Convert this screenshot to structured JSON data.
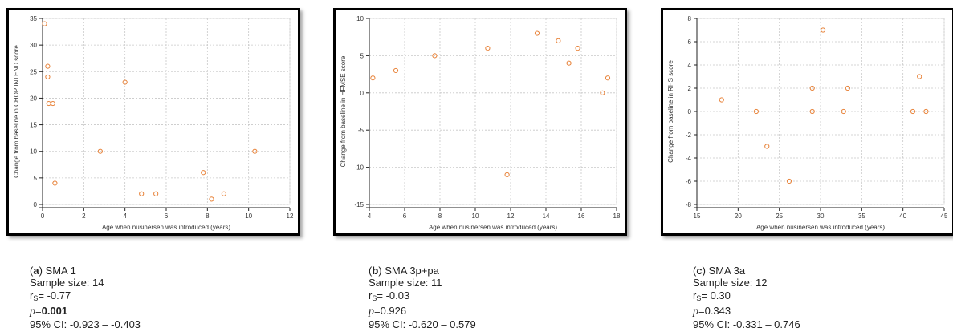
{
  "chart_data": [
    {
      "type": "scatter",
      "xlabel": "Age when nusinersen was introduced (years)",
      "ylabel": "Change from baseline in CHOP INTEND score",
      "xlim": [
        0,
        12
      ],
      "ylim": [
        0,
        35
      ],
      "xticks": [
        0,
        2,
        4,
        6,
        8,
        10,
        12
      ],
      "yticks": [
        0,
        5,
        10,
        15,
        20,
        25,
        30,
        35
      ],
      "grid": true,
      "marker_color": "#e8833a",
      "points": [
        {
          "x": 0.1,
          "y": 34
        },
        {
          "x": 0.25,
          "y": 26
        },
        {
          "x": 0.25,
          "y": 24
        },
        {
          "x": 0.3,
          "y": 19
        },
        {
          "x": 0.5,
          "y": 19
        },
        {
          "x": 0.6,
          "y": 4
        },
        {
          "x": 2.8,
          "y": 10
        },
        {
          "x": 4.0,
          "y": 23
        },
        {
          "x": 4.8,
          "y": 2
        },
        {
          "x": 5.5,
          "y": 2
        },
        {
          "x": 7.8,
          "y": 6
        },
        {
          "x": 8.2,
          "y": 1
        },
        {
          "x": 8.8,
          "y": 2
        },
        {
          "x": 10.3,
          "y": 10
        }
      ]
    },
    {
      "type": "scatter",
      "xlabel": "Age when nusinersen was introduced (years)",
      "ylabel": "Change from baseline in HFMSE score",
      "xlim": [
        4,
        18
      ],
      "ylim": [
        -15,
        10
      ],
      "xticks": [
        4,
        6,
        8,
        10,
        12,
        14,
        16,
        18
      ],
      "yticks": [
        -15,
        -10,
        -5,
        0,
        5,
        10
      ],
      "grid": true,
      "marker_color": "#e8833a",
      "points": [
        {
          "x": 4.2,
          "y": 2
        },
        {
          "x": 5.5,
          "y": 3
        },
        {
          "x": 7.7,
          "y": 5
        },
        {
          "x": 10.7,
          "y": 6
        },
        {
          "x": 11.8,
          "y": -11
        },
        {
          "x": 13.5,
          "y": 8
        },
        {
          "x": 14.7,
          "y": 7
        },
        {
          "x": 15.3,
          "y": 4
        },
        {
          "x": 15.8,
          "y": 6
        },
        {
          "x": 17.2,
          "y": 0
        },
        {
          "x": 17.5,
          "y": 2
        }
      ]
    },
    {
      "type": "scatter",
      "xlabel": "Age when nusinersen was introduced (years)",
      "ylabel": "Change from baseline in RHS score",
      "xlim": [
        15,
        45
      ],
      "ylim": [
        -8,
        8
      ],
      "xticks": [
        15,
        20,
        25,
        30,
        35,
        40,
        45
      ],
      "yticks": [
        -8,
        -6,
        -4,
        -2,
        0,
        2,
        4,
        6,
        8
      ],
      "grid": true,
      "marker_color": "#e8833a",
      "points": [
        {
          "x": 18.0,
          "y": 1
        },
        {
          "x": 22.2,
          "y": 0
        },
        {
          "x": 23.5,
          "y": -3
        },
        {
          "x": 26.2,
          "y": -6
        },
        {
          "x": 29.0,
          "y": 2
        },
        {
          "x": 29.0,
          "y": 0
        },
        {
          "x": 30.3,
          "y": 7
        },
        {
          "x": 32.8,
          "y": 0
        },
        {
          "x": 33.3,
          "y": 2
        },
        {
          "x": 41.2,
          "y": 0
        },
        {
          "x": 42.0,
          "y": 3
        },
        {
          "x": 42.8,
          "y": 0
        }
      ]
    }
  ],
  "captions": [
    {
      "panel": "a",
      "group": "SMA 1",
      "sample_label": "Sample size: 14",
      "rs": "= -0.77",
      "p": "0.001",
      "ci": "95% CI: -0.923 – -0.403"
    },
    {
      "panel": "b",
      "group": "SMA 3p+pa",
      "sample_label": "Sample size: 11",
      "rs": "= -0.03",
      "p": "0.926",
      "ci": "95% CI:  -0.620 – 0.579"
    },
    {
      "panel": "c",
      "group": "SMA 3a",
      "sample_label": "Sample size: 12",
      "rs": "= 0.30",
      "p": "0.343",
      "ci": "95% CI:  -0.331 – 0.746"
    }
  ],
  "caption_symbols": {
    "r": "r",
    "r_sub": "S",
    "p": "p",
    "p_eq": "="
  }
}
